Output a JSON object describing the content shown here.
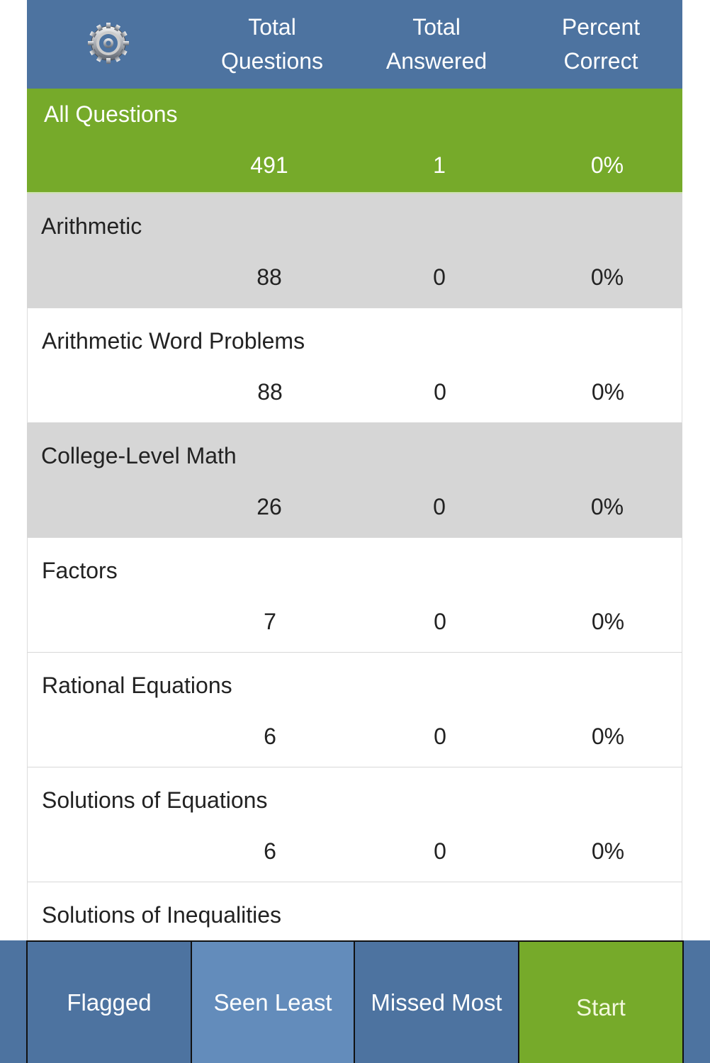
{
  "header": {
    "settings_icon": "gear-icon",
    "columns": [
      "Total\nQuestions",
      "Total\nAnswered",
      "Percent\nCorrect"
    ],
    "col1": [
      "Total",
      "Questions"
    ],
    "col2": [
      "Total",
      "Answered"
    ],
    "col3": [
      "Percent",
      "Correct"
    ]
  },
  "rows": [
    {
      "name": "All Questions",
      "total": "491",
      "answered": "1",
      "percent": "0%"
    },
    {
      "name": "Arithmetic",
      "total": "88",
      "answered": "0",
      "percent": "0%"
    },
    {
      "name": "Arithmetic Word Problems",
      "total": "88",
      "answered": "0",
      "percent": "0%"
    },
    {
      "name": "College-Level Math",
      "total": "26",
      "answered": "0",
      "percent": "0%"
    },
    {
      "name": "Factors",
      "total": "7",
      "answered": "0",
      "percent": "0%"
    },
    {
      "name": "Rational Equations",
      "total": "6",
      "answered": "0",
      "percent": "0%"
    },
    {
      "name": "Solutions of Equations",
      "total": "6",
      "answered": "0",
      "percent": "0%"
    },
    {
      "name": "Solutions of Inequalities"
    }
  ],
  "bottom": {
    "flagged": "Flagged",
    "seen_least": "Seen Least",
    "missed_most": "Missed Most",
    "start": "Start"
  },
  "colors": {
    "header": "#4d73a0",
    "accent_green": "#76aa2a",
    "selected_button": "#638cbb",
    "gray_row": "#d6d6d6"
  }
}
